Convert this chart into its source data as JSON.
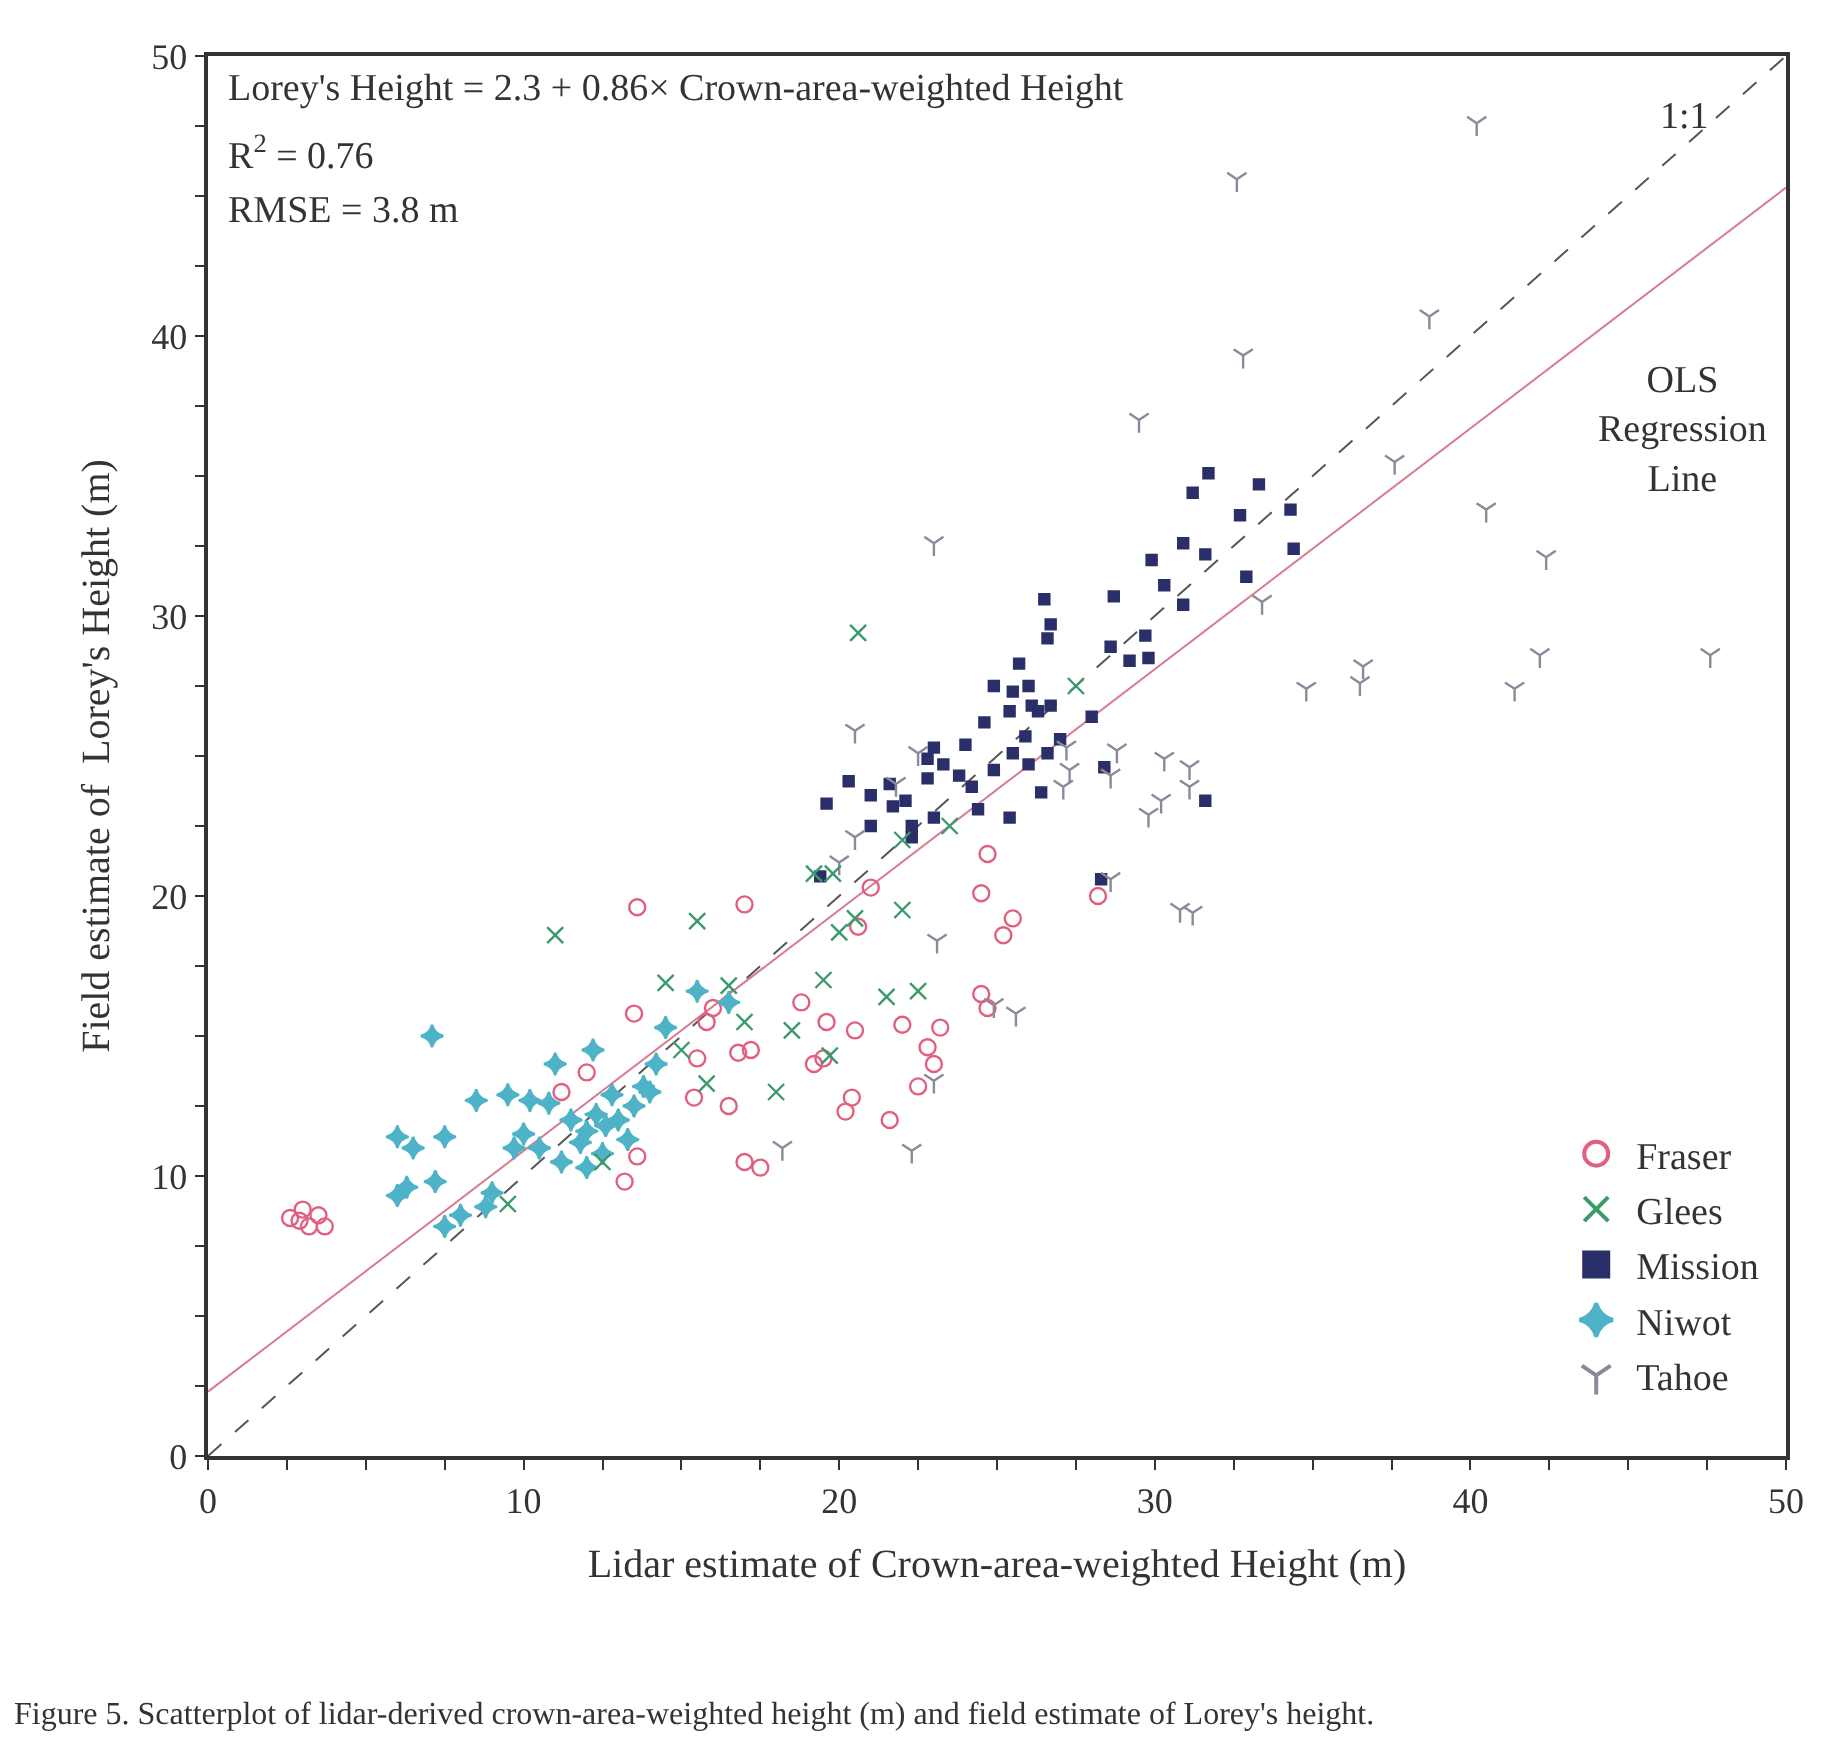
{
  "chart_data": {
    "type": "scatter",
    "xlabel": "Lidar estimate of Crown-area-weighted Height (m)",
    "ylabel": "Field estimate of  Lorey's Height (m)",
    "xlim": [
      0,
      50
    ],
    "ylim": [
      0,
      50
    ],
    "xticks": [
      0,
      {
        "value": 2.5,
        "label": null
      },
      {
        "value": 5,
        "label": null
      },
      {
        "value": 7.5,
        "label": null
      },
      10,
      {
        "value": 12.5,
        "label": null
      },
      {
        "value": 15,
        "label": null
      },
      {
        "value": 17.5,
        "label": null
      },
      20,
      {
        "value": 22.5,
        "label": null
      },
      {
        "value": 25,
        "label": null
      },
      {
        "value": 27.5,
        "label": null
      },
      30,
      {
        "value": 32.5,
        "label": null
      },
      {
        "value": 35,
        "label": null
      },
      {
        "value": 37.5,
        "label": null
      },
      40,
      {
        "value": 42.5,
        "label": null
      },
      {
        "value": 45,
        "label": null
      },
      {
        "value": 47.5,
        "label": null
      },
      50
    ],
    "yticks": [
      0,
      {
        "value": 2.5,
        "label": null
      },
      {
        "value": 5,
        "label": null
      },
      {
        "value": 7.5,
        "label": null
      },
      10,
      {
        "value": 12.5,
        "label": null
      },
      {
        "value": 15,
        "label": null
      },
      {
        "value": 17.5,
        "label": null
      },
      20,
      {
        "value": 22.5,
        "label": null
      },
      {
        "value": 25,
        "label": null
      },
      {
        "value": 27.5,
        "label": null
      },
      30,
      {
        "value": 32.5,
        "label": null
      },
      {
        "value": 35,
        "label": null
      },
      {
        "value": 37.5,
        "label": null
      },
      40,
      {
        "value": 42.5,
        "label": null
      },
      {
        "value": 45,
        "label": null
      },
      {
        "value": 47.5,
        "label": null
      },
      50
    ],
    "legend": "bottom right",
    "series": [
      {
        "type": "line",
        "color": "#555555",
        "line_style": "dashed",
        "marker": "none",
        "x": [
          0,
          50
        ],
        "values": [
          0,
          50
        ]
      },
      {
        "type": "line",
        "color": "#d87a90",
        "line_style": "solid",
        "marker": "none",
        "x": [
          0,
          50
        ],
        "values": [
          2.3,
          45.3
        ]
      },
      {
        "name": "Fraser",
        "color": "#e0607e",
        "marker": "circle",
        "x": [
          2.6,
          3.0,
          3.2,
          3.5,
          3.7,
          2.9,
          11.2,
          12.0,
          13.2,
          13.6,
          13.5,
          15.4,
          15.5,
          15.8,
          16.0,
          16.5,
          16.8,
          17.2,
          17.0,
          17.5,
          17.0,
          18.8,
          19.2,
          19.5,
          19.6,
          20.2,
          20.4,
          20.5,
          20.6,
          21.0,
          21.6,
          22.0,
          22.5,
          22.8,
          23.2,
          23.0,
          24.5,
          24.7,
          24.5,
          24.7,
          25.2,
          25.5,
          28.2,
          13.6
        ],
        "values": [
          8.5,
          8.8,
          8.2,
          8.6,
          8.2,
          8.4,
          13.0,
          13.7,
          9.8,
          10.7,
          15.8,
          12.8,
          14.2,
          15.5,
          16.0,
          12.5,
          14.4,
          14.5,
          10.5,
          10.3,
          19.7,
          16.2,
          14.0,
          14.2,
          15.5,
          12.3,
          12.8,
          15.2,
          18.9,
          20.3,
          12.0,
          15.4,
          13.2,
          14.6,
          15.3,
          14.0,
          16.5,
          16.0,
          20.1,
          21.5,
          18.6,
          19.2,
          20.0,
          19.6
        ]
      },
      {
        "name": "Glees",
        "color": "#3a9a6a",
        "marker": "cross",
        "x": [
          11.0,
          15.5,
          14.5,
          17.0,
          16.5,
          18.0,
          18.5,
          19.2,
          19.5,
          19.7,
          20.0,
          20.5,
          20.6,
          21.5,
          22.0,
          22.5,
          23.5,
          15.0,
          15.8,
          12.5,
          9.5,
          22.0,
          27.5,
          19.8
        ],
        "values": [
          18.6,
          19.1,
          16.9,
          15.5,
          16.8,
          13.0,
          15.2,
          20.8,
          17.0,
          14.3,
          18.7,
          19.2,
          29.4,
          16.4,
          19.5,
          16.6,
          22.5,
          14.5,
          13.3,
          10.5,
          9.0,
          22.0,
          27.5,
          20.8
        ]
      },
      {
        "name": "Mission",
        "color": "#2a2f6a",
        "marker": "square",
        "x": [
          31.7,
          31.2,
          33.3,
          30.9,
          31.6,
          32.7,
          34.3,
          34.4,
          29.9,
          30.3,
          32.9,
          30.9,
          28.7,
          26.5,
          26.7,
          26.6,
          28.6,
          29.7,
          29.2,
          29.8,
          25.7,
          24.9,
          25.5,
          26.0,
          24.6,
          25.4,
          26.1,
          26.3,
          26.7,
          25.9,
          26.6,
          27.0,
          28.0,
          24.0,
          23.0,
          22.8,
          23.3,
          25.5,
          26.0,
          24.9,
          24.2,
          23.8,
          22.8,
          21.6,
          20.3,
          19.6,
          21.0,
          21.7,
          22.1,
          23.0,
          21.0,
          22.3,
          24.4,
          25.4,
          26.4,
          28.4,
          31.6,
          19.4,
          28.3,
          22.3
        ],
        "values": [
          35.1,
          34.4,
          34.7,
          32.6,
          32.2,
          33.6,
          33.8,
          32.4,
          32.0,
          31.1,
          31.4,
          30.4,
          30.7,
          30.6,
          29.7,
          29.2,
          28.9,
          29.3,
          28.4,
          28.5,
          28.3,
          27.5,
          27.3,
          27.5,
          26.2,
          26.6,
          26.8,
          26.6,
          26.8,
          25.7,
          25.1,
          25.6,
          26.4,
          25.4,
          25.3,
          24.9,
          24.7,
          25.1,
          24.7,
          24.5,
          23.9,
          24.3,
          24.2,
          24.0,
          24.1,
          23.3,
          23.6,
          23.2,
          23.4,
          22.8,
          22.5,
          22.5,
          23.1,
          22.8,
          23.7,
          24.6,
          23.4,
          20.7,
          20.6,
          22.1
        ]
      },
      {
        "name": "Niwot",
        "color": "#4fb3c8",
        "marker": "star",
        "x": [
          6.0,
          6.3,
          6.0,
          6.5,
          7.2,
          7.5,
          8.0,
          8.5,
          8.8,
          9.0,
          9.5,
          10.0,
          10.5,
          10.8,
          11.0,
          11.5,
          11.8,
          12.0,
          12.3,
          12.5,
          12.6,
          12.8,
          13.0,
          13.3,
          13.5,
          13.8,
          14.0,
          14.2,
          14.5,
          12.2,
          12.0,
          11.2,
          15.5,
          16.5,
          7.1,
          9.7,
          7.5,
          10.2
        ],
        "values": [
          9.3,
          9.6,
          11.4,
          11.0,
          9.8,
          8.2,
          8.6,
          12.7,
          8.9,
          9.4,
          12.9,
          11.5,
          11.0,
          12.6,
          14.0,
          12.0,
          11.2,
          11.6,
          12.2,
          10.8,
          11.8,
          12.9,
          12.0,
          11.3,
          12.5,
          13.2,
          13.0,
          14.0,
          15.3,
          14.5,
          10.3,
          10.5,
          16.6,
          16.2,
          15.0,
          11.0,
          11.4,
          12.7
        ]
      },
      {
        "name": "Tahoe",
        "color": "#8a8a9a",
        "x": [
          40.2,
          32.6,
          38.7,
          32.8,
          29.5,
          37.6,
          40.5,
          42.4,
          33.4,
          23.0,
          34.8,
          36.5,
          36.6,
          42.2,
          47.6,
          41.4,
          28.8,
          28.6,
          31.1,
          31.1,
          30.3,
          30.2,
          29.8,
          27.3,
          27.2,
          27.1,
          30.8,
          31.2,
          23.1,
          24.9,
          25.6,
          22.3,
          23.0,
          18.2,
          20.5,
          20.5,
          21.8,
          22.5,
          28.6,
          20.0
        ],
        "values": [
          47.6,
          45.6,
          40.7,
          39.3,
          37.0,
          35.5,
          33.8,
          32.1,
          30.5,
          32.6,
          27.4,
          27.6,
          28.2,
          28.6,
          28.6,
          27.4,
          25.2,
          24.3,
          24.6,
          23.9,
          24.9,
          23.4,
          22.9,
          24.5,
          25.3,
          23.9,
          19.5,
          19.4,
          18.4,
          16.1,
          15.8,
          10.9,
          13.4,
          11.0,
          22.1,
          25.9,
          24.0,
          25.1,
          20.6,
          21.2
        ]
      }
    ],
    "annotations": [
      "Lorey's Height = 2.3 + 0.86× Crown-area-weighted Height",
      "R$^{2}$ = 0.76",
      "RMSE = 3.8 m",
      "1:1",
      "OLS Regression Line",
      "Figure 5. Scatterplot of lidar-derived crown-area-weighted height (m) and field estimate of Lorey's height."
    ]
  }
}
